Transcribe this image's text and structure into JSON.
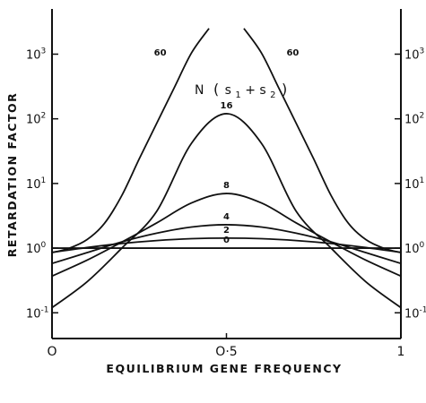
{
  "chart_data": {
    "type": "line",
    "title": "",
    "xlabel": "EQUILIBRIUM GENE FREQUENCY",
    "ylabel": "RETARDATION FACTOR",
    "xlim": [
      0,
      1
    ],
    "ylim": [
      0.04,
      5000
    ],
    "y_scale": "log",
    "grid": false,
    "x_ticks": [
      0,
      0.5,
      1
    ],
    "x_tick_labels": [
      "O",
      "O·5",
      "1"
    ],
    "y_ticks": [
      0.1,
      1,
      10,
      100,
      1000
    ],
    "y_tick_base": "10",
    "y_tick_exponents": [
      "-1",
      "0",
      "1",
      "2",
      "3"
    ],
    "legend_title": {
      "prefix": "N",
      "open": "(",
      "s1": "s",
      "s1_sub": "1",
      "plus": "+",
      "s2": "s",
      "s2_sub": "2",
      "close": ")"
    },
    "series": [
      {
        "name": "0",
        "x": [
          0,
          0.5,
          1
        ],
        "y": [
          1,
          1,
          1
        ]
      },
      {
        "name": "2",
        "x": [
          0,
          0.1,
          0.2,
          0.3,
          0.4,
          0.5,
          0.6,
          0.7,
          0.8,
          0.9,
          1
        ],
        "y": [
          0.86,
          1.02,
          1.18,
          1.31,
          1.4,
          1.43,
          1.4,
          1.31,
          1.18,
          1.02,
          0.86
        ]
      },
      {
        "name": "4",
        "x": [
          0,
          0.1,
          0.2,
          0.3,
          0.4,
          0.5,
          0.6,
          0.7,
          0.8,
          0.9,
          1
        ],
        "y": [
          0.58,
          0.85,
          1.25,
          1.7,
          2.12,
          2.3,
          2.12,
          1.7,
          1.25,
          0.85,
          0.58
        ]
      },
      {
        "name": "8",
        "x": [
          0,
          0.1,
          0.2,
          0.3,
          0.4,
          0.5,
          0.6,
          0.7,
          0.8,
          0.9,
          1
        ],
        "y": [
          0.37,
          0.65,
          1.24,
          2.45,
          5.0,
          7.0,
          5.0,
          2.45,
          1.24,
          0.65,
          0.37
        ]
      },
      {
        "name": "16",
        "x": [
          0,
          0.1,
          0.2,
          0.3,
          0.4,
          0.5,
          0.6,
          0.7,
          0.8,
          0.9,
          1
        ],
        "y": [
          0.12,
          0.3,
          1.0,
          3.7,
          42,
          120,
          42,
          3.7,
          1.0,
          0.3,
          0.12
        ]
      },
      {
        "name": "60",
        "x": [
          0,
          0.05,
          0.1,
          0.15,
          0.2,
          0.25,
          0.3,
          0.35,
          0.4,
          0.45
        ],
        "y": [
          0.85,
          1.0,
          1.35,
          2.4,
          6.5,
          24,
          85,
          300,
          1050,
          2500
        ]
      },
      {
        "name": "60",
        "x": [
          0.55,
          0.6,
          0.65,
          0.7,
          0.75,
          0.8,
          0.85,
          0.9,
          0.95,
          1
        ],
        "y": [
          2500,
          1050,
          300,
          85,
          24,
          6.5,
          2.4,
          1.35,
          1.0,
          0.85
        ]
      }
    ]
  }
}
